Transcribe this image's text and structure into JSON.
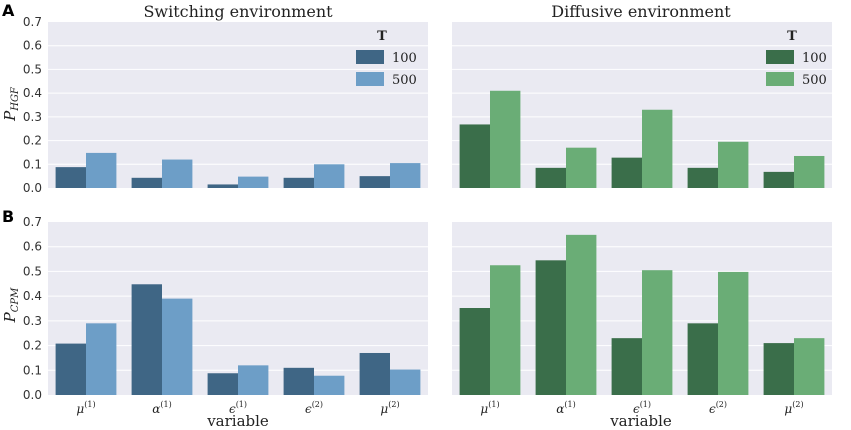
{
  "figure": {
    "panel_letters": [
      "A",
      "B"
    ],
    "xlabel": "variable",
    "legend_title": "T",
    "colors": {
      "switching": [
        "#3f6685",
        "#6d9ec7"
      ],
      "diffusive": [
        "#3a6e4a",
        "#6aad76"
      ]
    }
  },
  "chart_data": [
    {
      "type": "bar",
      "panel": "A",
      "title": "Switching environment",
      "ylabel_main": "P",
      "ylabel_sub": "HGF",
      "xlabel": "",
      "categories": [
        "μ(1)",
        "α(1)",
        "ϵ(1)",
        "ϵ(2)",
        "μ(2)"
      ],
      "series": [
        {
          "name": "100",
          "values": [
            0.088,
            0.043,
            0.015,
            0.043,
            0.05
          ]
        },
        {
          "name": "500",
          "values": [
            0.148,
            0.12,
            0.048,
            0.1,
            0.105
          ]
        }
      ],
      "ylim": [
        0,
        0.7
      ],
      "yticks": [
        "0.0",
        "0.1",
        "0.2",
        "0.3",
        "0.4",
        "0.5",
        "0.6",
        "0.7"
      ],
      "legend": "top-right",
      "grid": true
    },
    {
      "type": "bar",
      "panel": "A",
      "title": "Diffusive environment",
      "xlabel": "",
      "categories": [
        "μ(1)",
        "α(1)",
        "ϵ(1)",
        "ϵ(2)",
        "μ(2)"
      ],
      "series": [
        {
          "name": "100",
          "values": [
            0.268,
            0.085,
            0.128,
            0.085,
            0.068
          ]
        },
        {
          "name": "500",
          "values": [
            0.41,
            0.17,
            0.33,
            0.195,
            0.135
          ]
        }
      ],
      "ylim": [
        0,
        0.7
      ],
      "legend": "top-right",
      "grid": true
    },
    {
      "type": "bar",
      "panel": "B",
      "title": "",
      "ylabel_main": "P",
      "ylabel_sub": "CPM",
      "xlabel": "variable",
      "categories": [
        "μ(1)",
        "α(1)",
        "ϵ(1)",
        "ϵ(2)",
        "μ(2)"
      ],
      "series": [
        {
          "name": "100",
          "values": [
            0.208,
            0.448,
            0.088,
            0.11,
            0.17
          ]
        },
        {
          "name": "500",
          "values": [
            0.29,
            0.39,
            0.12,
            0.078,
            0.103
          ]
        }
      ],
      "ylim": [
        0,
        0.7
      ],
      "yticks": [
        "0.0",
        "0.1",
        "0.2",
        "0.3",
        "0.4",
        "0.5",
        "0.6",
        "0.7"
      ],
      "grid": true
    },
    {
      "type": "bar",
      "panel": "B",
      "title": "",
      "xlabel": "variable",
      "categories": [
        "μ(1)",
        "α(1)",
        "ϵ(1)",
        "ϵ(2)",
        "μ(2)"
      ],
      "series": [
        {
          "name": "100",
          "values": [
            0.352,
            0.545,
            0.23,
            0.29,
            0.21
          ]
        },
        {
          "name": "500",
          "values": [
            0.525,
            0.648,
            0.505,
            0.498,
            0.23
          ]
        }
      ],
      "ylim": [
        0,
        0.7
      ],
      "grid": true
    }
  ]
}
